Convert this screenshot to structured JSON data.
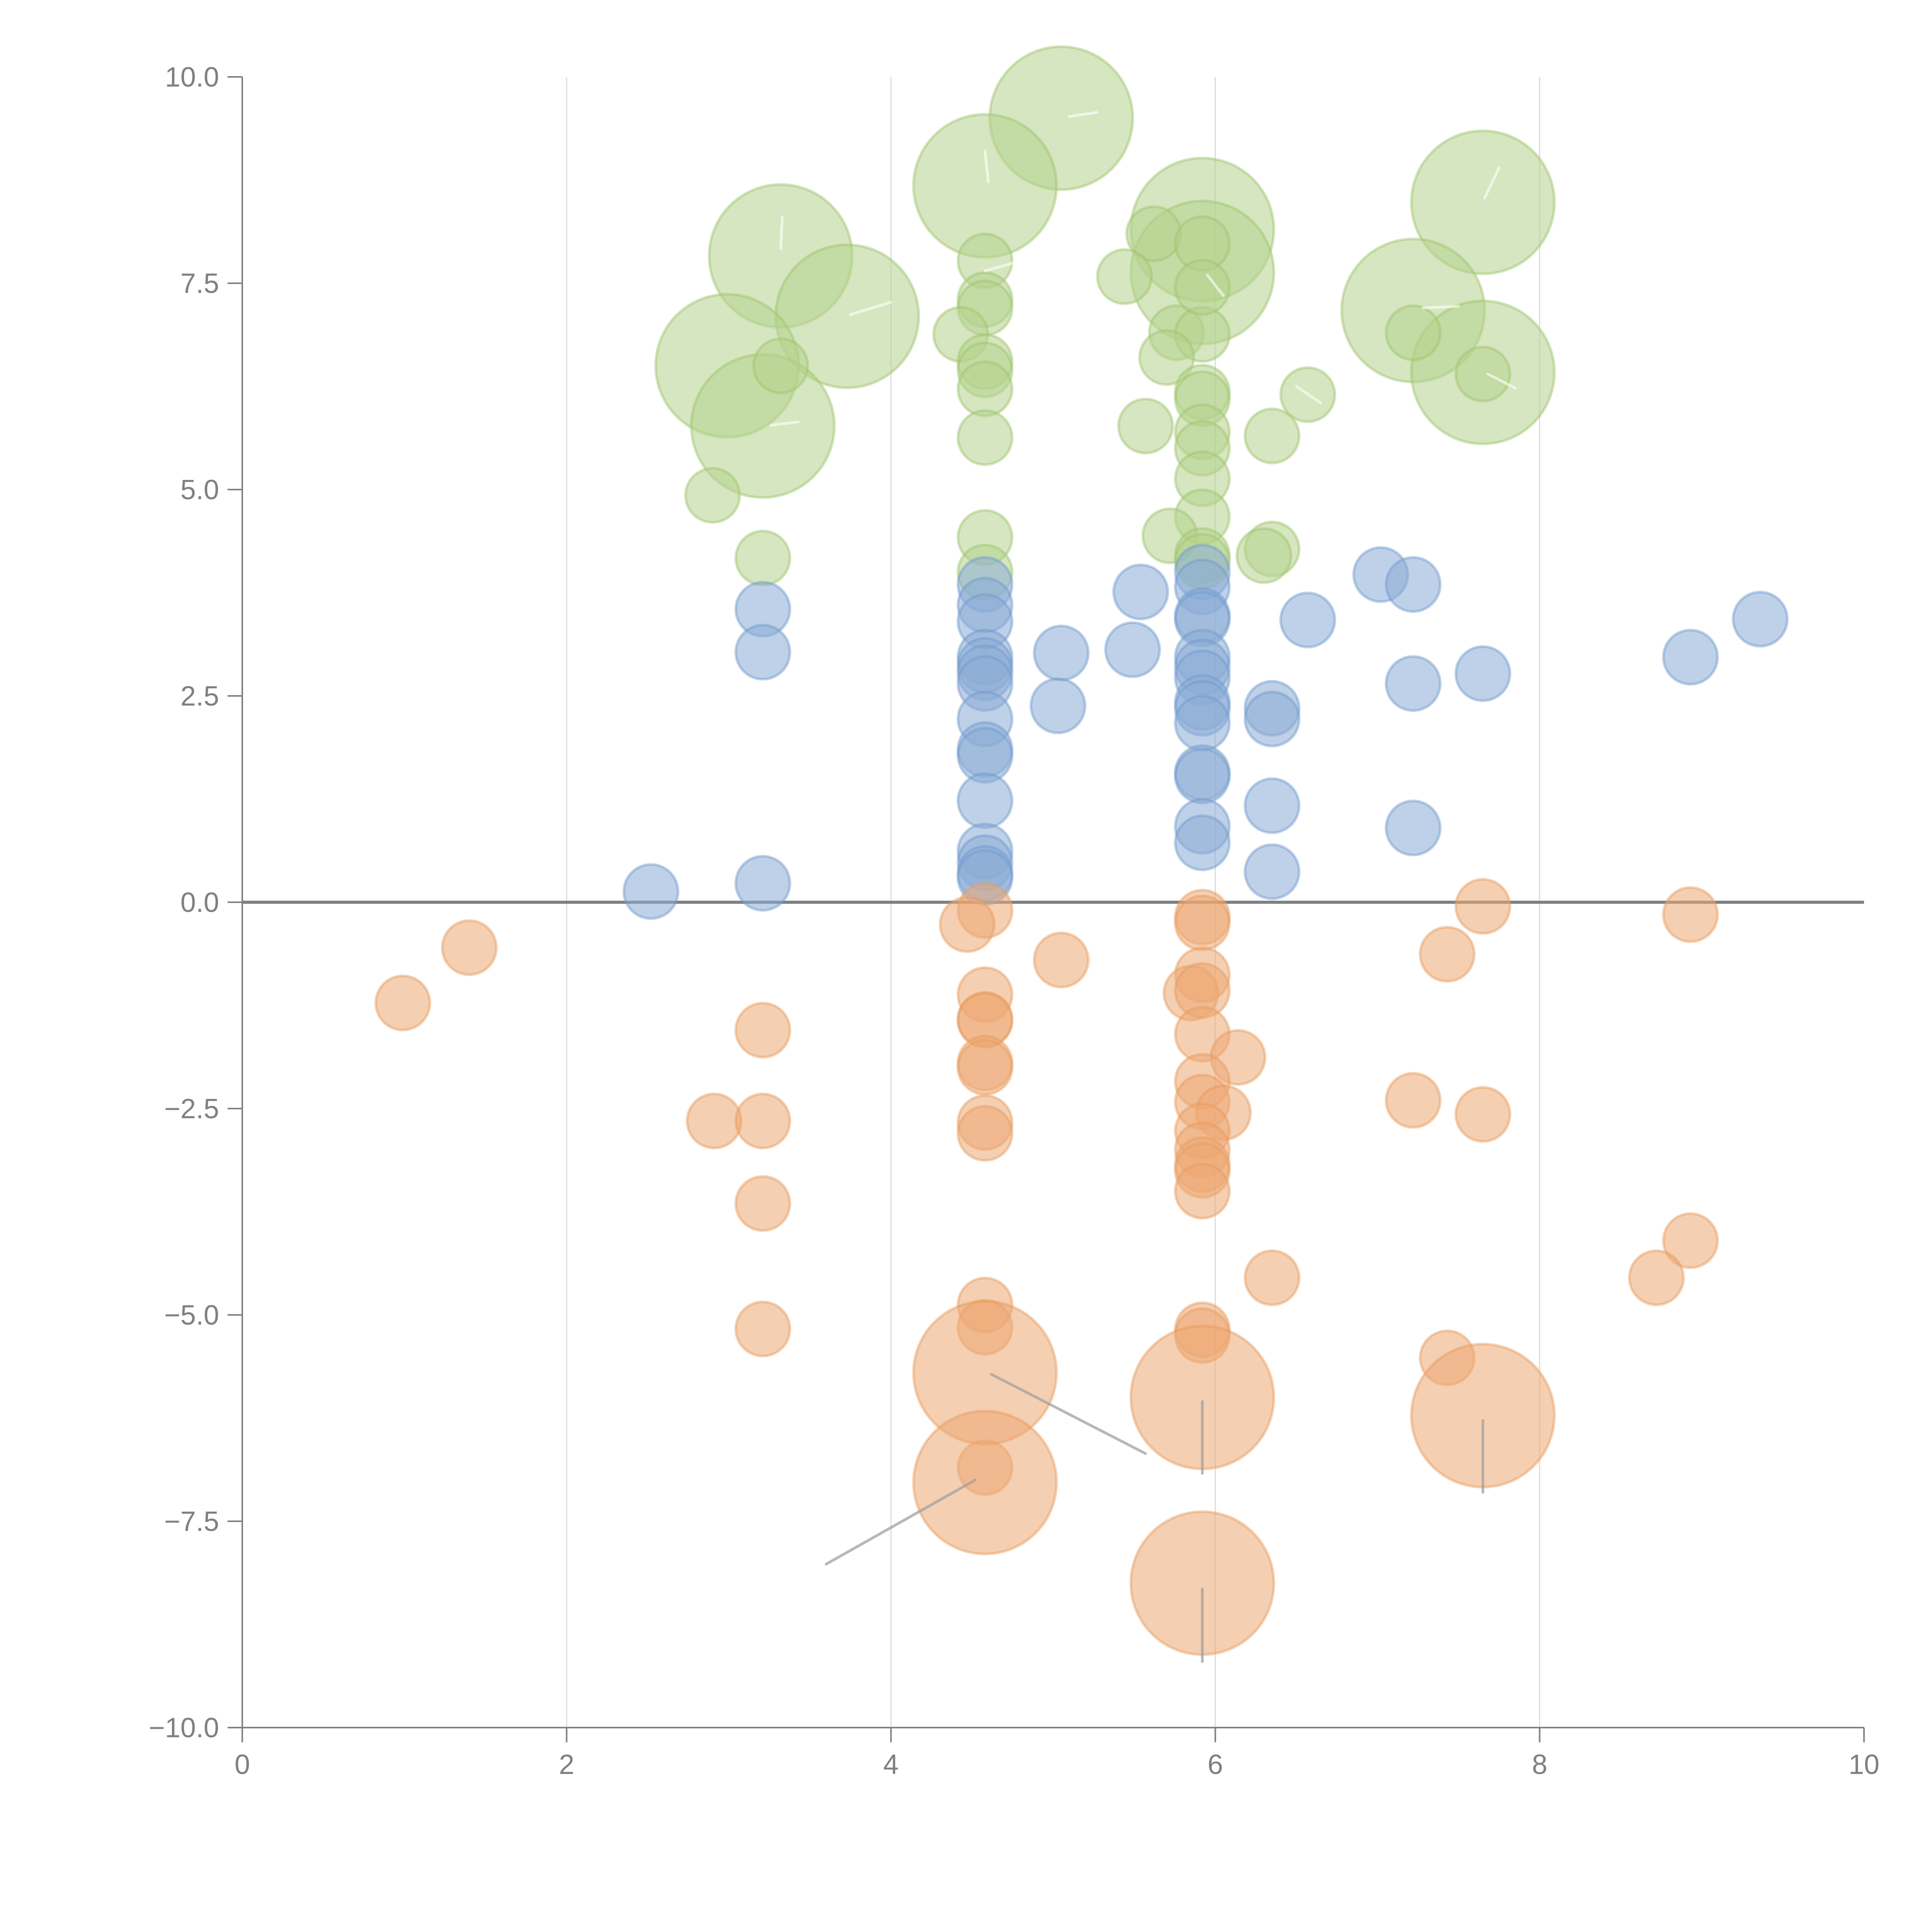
{
  "chart_data": {
    "type": "scatter",
    "title": "",
    "xlabel": "",
    "ylabel": "",
    "xlim": [
      0,
      10
    ],
    "ylim": [
      -10,
      10
    ],
    "xticks": [
      "0",
      "2",
      "4",
      "6",
      "8",
      "10"
    ],
    "yticks": [
      "10.0",
      "7.5",
      "5.0",
      "2.5",
      "0.0",
      "−2.5",
      "−5.0",
      "−7.5",
      "−10.0"
    ],
    "grid": "vertical",
    "legend": "none",
    "reference_line": {
      "y": 0
    },
    "series": [
      {
        "name": "green",
        "color": "#9dc36a",
        "points": [
          {
            "x": 5.05,
            "y": 9.5,
            "size": "large"
          },
          {
            "x": 4.58,
            "y": 8.68,
            "size": "large"
          },
          {
            "x": 3.32,
            "y": 7.83,
            "size": "large"
          },
          {
            "x": 7.65,
            "y": 8.48,
            "size": "large"
          },
          {
            "x": 5.92,
            "y": 8.15,
            "size": "large"
          },
          {
            "x": 5.92,
            "y": 7.63,
            "size": "large"
          },
          {
            "x": 3.73,
            "y": 7.1,
            "size": "large"
          },
          {
            "x": 7.22,
            "y": 7.17,
            "size": "large"
          },
          {
            "x": 2.99,
            "y": 6.5,
            "size": "large"
          },
          {
            "x": 7.65,
            "y": 6.42,
            "size": "large"
          },
          {
            "x": 3.21,
            "y": 5.77,
            "size": "large"
          },
          {
            "x": 5.62,
            "y": 8.1
          },
          {
            "x": 5.44,
            "y": 7.58
          },
          {
            "x": 5.92,
            "y": 7.98
          },
          {
            "x": 4.58,
            "y": 7.77
          },
          {
            "x": 4.58,
            "y": 7.3
          },
          {
            "x": 4.58,
            "y": 7.2
          },
          {
            "x": 4.43,
            "y": 6.88
          },
          {
            "x": 5.76,
            "y": 6.9
          },
          {
            "x": 5.92,
            "y": 6.88
          },
          {
            "x": 5.92,
            "y": 7.45
          },
          {
            "x": 3.32,
            "y": 6.5
          },
          {
            "x": 5.7,
            "y": 6.6
          },
          {
            "x": 4.58,
            "y": 6.55
          },
          {
            "x": 4.58,
            "y": 6.45
          },
          {
            "x": 4.58,
            "y": 6.22
          },
          {
            "x": 7.22,
            "y": 6.9
          },
          {
            "x": 7.65,
            "y": 6.4
          },
          {
            "x": 5.92,
            "y": 6.18
          },
          {
            "x": 5.92,
            "y": 6.1
          },
          {
            "x": 6.57,
            "y": 6.15
          },
          {
            "x": 5.57,
            "y": 5.77
          },
          {
            "x": 4.58,
            "y": 5.63
          },
          {
            "x": 6.35,
            "y": 5.65
          },
          {
            "x": 5.92,
            "y": 5.7
          },
          {
            "x": 5.92,
            "y": 5.5
          },
          {
            "x": 5.92,
            "y": 5.13
          },
          {
            "x": 2.9,
            "y": 4.93
          },
          {
            "x": 5.92,
            "y": 4.67
          },
          {
            "x": 5.72,
            "y": 4.44
          },
          {
            "x": 4.58,
            "y": 4.42
          },
          {
            "x": 3.21,
            "y": 4.17
          },
          {
            "x": 6.35,
            "y": 4.28
          },
          {
            "x": 6.3,
            "y": 4.2
          },
          {
            "x": 5.92,
            "y": 4.2
          },
          {
            "x": 5.92,
            "y": 4.13
          },
          {
            "x": 4.58,
            "y": 4.0
          }
        ]
      },
      {
        "name": "blue",
        "color": "#6e98cc",
        "points": [
          {
            "x": 7.02,
            "y": 3.97
          },
          {
            "x": 7.22,
            "y": 3.85
          },
          {
            "x": 5.92,
            "y": 4.0
          },
          {
            "x": 5.92,
            "y": 3.82
          },
          {
            "x": 4.58,
            "y": 3.85
          },
          {
            "x": 5.54,
            "y": 3.76
          },
          {
            "x": 3.21,
            "y": 3.55
          },
          {
            "x": 4.58,
            "y": 3.6
          },
          {
            "x": 4.58,
            "y": 3.4
          },
          {
            "x": 5.92,
            "y": 3.47
          },
          {
            "x": 5.92,
            "y": 3.43
          },
          {
            "x": 6.57,
            "y": 3.42
          },
          {
            "x": 9.36,
            "y": 3.43
          },
          {
            "x": 3.21,
            "y": 3.03
          },
          {
            "x": 5.05,
            "y": 3.02
          },
          {
            "x": 5.49,
            "y": 3.06
          },
          {
            "x": 8.93,
            "y": 2.97
          },
          {
            "x": 4.58,
            "y": 2.97
          },
          {
            "x": 4.58,
            "y": 2.87
          },
          {
            "x": 4.58,
            "y": 2.78
          },
          {
            "x": 4.58,
            "y": 2.65
          },
          {
            "x": 5.92,
            "y": 2.97
          },
          {
            "x": 5.92,
            "y": 2.85
          },
          {
            "x": 5.92,
            "y": 2.72
          },
          {
            "x": 7.65,
            "y": 2.77
          },
          {
            "x": 7.22,
            "y": 2.65
          },
          {
            "x": 5.03,
            "y": 2.38
          },
          {
            "x": 5.92,
            "y": 2.42
          },
          {
            "x": 5.92,
            "y": 2.35
          },
          {
            "x": 6.35,
            "y": 2.35
          },
          {
            "x": 6.35,
            "y": 2.22
          },
          {
            "x": 4.58,
            "y": 2.22
          },
          {
            "x": 5.92,
            "y": 2.17
          },
          {
            "x": 4.58,
            "y": 1.85
          },
          {
            "x": 4.58,
            "y": 1.78
          },
          {
            "x": 5.92,
            "y": 1.57
          },
          {
            "x": 5.92,
            "y": 1.53
          },
          {
            "x": 4.58,
            "y": 1.23
          },
          {
            "x": 6.35,
            "y": 1.17
          },
          {
            "x": 5.92,
            "y": 0.92
          },
          {
            "x": 7.22,
            "y": 0.9
          },
          {
            "x": 5.92,
            "y": 0.72
          },
          {
            "x": 4.58,
            "y": 0.62
          },
          {
            "x": 4.58,
            "y": 0.48
          },
          {
            "x": 4.58,
            "y": 0.35
          },
          {
            "x": 4.58,
            "y": 0.3
          },
          {
            "x": 6.35,
            "y": 0.37
          },
          {
            "x": 2.52,
            "y": 0.13
          },
          {
            "x": 3.21,
            "y": 0.23
          }
        ]
      },
      {
        "name": "orange",
        "color": "#e69b5e",
        "points": [
          {
            "x": 7.65,
            "y": -0.05
          },
          {
            "x": 4.58,
            "y": -0.1
          },
          {
            "x": 8.93,
            "y": -0.15
          },
          {
            "x": 5.92,
            "y": -0.18
          },
          {
            "x": 5.92,
            "y": -0.25
          },
          {
            "x": 4.47,
            "y": -0.27
          },
          {
            "x": 1.4,
            "y": -0.55
          },
          {
            "x": 7.43,
            "y": -0.63
          },
          {
            "x": 5.05,
            "y": -0.7
          },
          {
            "x": 5.92,
            "y": -0.88
          },
          {
            "x": 5.85,
            "y": -1.1
          },
          {
            "x": 5.92,
            "y": -1.07
          },
          {
            "x": 4.58,
            "y": -1.12
          },
          {
            "x": 0.99,
            "y": -1.22
          },
          {
            "x": 4.58,
            "y": -1.42
          },
          {
            "x": 4.58,
            "y": -1.43
          },
          {
            "x": 3.21,
            "y": -1.55
          },
          {
            "x": 5.92,
            "y": -1.6
          },
          {
            "x": 6.14,
            "y": -1.88
          },
          {
            "x": 4.58,
            "y": -1.95
          },
          {
            "x": 4.58,
            "y": -2.0
          },
          {
            "x": 5.92,
            "y": -2.17
          },
          {
            "x": 7.22,
            "y": -2.4
          },
          {
            "x": 5.92,
            "y": -2.42
          },
          {
            "x": 6.05,
            "y": -2.55
          },
          {
            "x": 7.65,
            "y": -2.57
          },
          {
            "x": 2.91,
            "y": -2.65
          },
          {
            "x": 3.21,
            "y": -2.65
          },
          {
            "x": 4.58,
            "y": -2.67
          },
          {
            "x": 4.58,
            "y": -2.8
          },
          {
            "x": 5.92,
            "y": -2.77
          },
          {
            "x": 5.92,
            "y": -3.0
          },
          {
            "x": 5.92,
            "y": -3.18
          },
          {
            "x": 5.92,
            "y": -3.25
          },
          {
            "x": 5.92,
            "y": -3.5
          },
          {
            "x": 3.21,
            "y": -3.65
          },
          {
            "x": 8.93,
            "y": -4.1
          },
          {
            "x": 6.35,
            "y": -4.55
          },
          {
            "x": 8.72,
            "y": -4.55
          },
          {
            "x": 4.58,
            "y": -4.88
          },
          {
            "x": 4.58,
            "y": -5.15
          },
          {
            "x": 3.21,
            "y": -5.17
          },
          {
            "x": 5.92,
            "y": -5.18
          },
          {
            "x": 5.92,
            "y": -5.25
          },
          {
            "x": 7.43,
            "y": -5.52
          },
          {
            "x": 4.58,
            "y": -6.85
          },
          {
            "x": 4.58,
            "y": -5.7,
            "size": "large"
          },
          {
            "x": 5.92,
            "y": -6.0,
            "size": "large"
          },
          {
            "x": 7.65,
            "y": -6.22,
            "size": "large"
          },
          {
            "x": 4.58,
            "y": -7.03,
            "size": "large"
          },
          {
            "x": 5.92,
            "y": -8.25,
            "size": "large"
          }
        ]
      }
    ],
    "leader_lines": [
      {
        "series": "orange",
        "from": {
          "x": 4.62,
          "y": -5.72
        },
        "to": {
          "x": 5.57,
          "y": -6.68
        }
      },
      {
        "series": "orange",
        "from": {
          "x": 4.52,
          "y": -7.0
        },
        "to": {
          "x": 3.6,
          "y": -8.02
        }
      },
      {
        "series": "orange",
        "from": {
          "x": 5.92,
          "y": -6.05
        },
        "to": {
          "x": 5.92,
          "y": -6.92
        }
      },
      {
        "series": "orange",
        "from": {
          "x": 7.65,
          "y": -6.28
        },
        "to": {
          "x": 7.65,
          "y": -7.15
        }
      },
      {
        "series": "orange",
        "from": {
          "x": 5.92,
          "y": -8.32
        },
        "to": {
          "x": 5.92,
          "y": -9.2
        }
      },
      {
        "series": "green",
        "from": {
          "x": 5.1,
          "y": 9.52
        },
        "to": {
          "x": 5.27,
          "y": 9.57
        }
      },
      {
        "series": "green",
        "from": {
          "x": 4.6,
          "y": 8.73
        },
        "to": {
          "x": 4.58,
          "y": 9.1
        }
      },
      {
        "series": "green",
        "from": {
          "x": 3.32,
          "y": 7.92
        },
        "to": {
          "x": 3.33,
          "y": 8.3
        }
      },
      {
        "series": "green",
        "from": {
          "x": 3.75,
          "y": 7.12
        },
        "to": {
          "x": 4.0,
          "y": 7.27
        }
      },
      {
        "series": "green",
        "from": {
          "x": 3.26,
          "y": 5.78
        },
        "to": {
          "x": 3.43,
          "y": 5.82
        }
      },
      {
        "series": "green",
        "from": {
          "x": 7.66,
          "y": 8.53
        },
        "to": {
          "x": 7.75,
          "y": 8.9
        }
      },
      {
        "series": "green",
        "from": {
          "x": 7.28,
          "y": 7.2
        },
        "to": {
          "x": 7.5,
          "y": 7.22
        }
      },
      {
        "series": "green",
        "from": {
          "x": 7.68,
          "y": 6.4
        },
        "to": {
          "x": 7.85,
          "y": 6.23
        }
      },
      {
        "series": "green",
        "from": {
          "x": 4.58,
          "y": 7.65
        },
        "to": {
          "x": 4.8,
          "y": 7.77
        }
      },
      {
        "series": "green",
        "from": {
          "x": 5.95,
          "y": 7.6
        },
        "to": {
          "x": 6.05,
          "y": 7.35
        }
      },
      {
        "series": "green",
        "from": {
          "x": 6.5,
          "y": 6.25
        },
        "to": {
          "x": 6.65,
          "y": 6.05
        }
      }
    ]
  }
}
